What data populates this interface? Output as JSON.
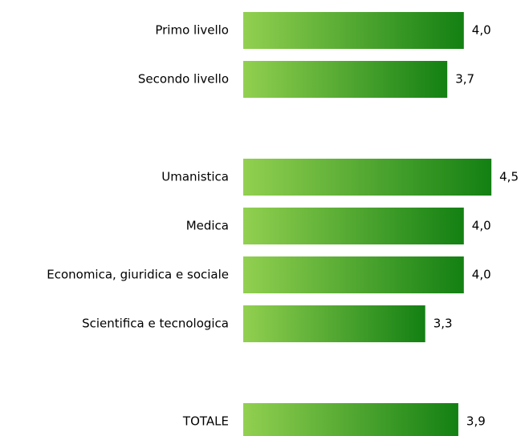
{
  "chart_data": {
    "type": "bar",
    "orientation": "horizontal",
    "categories": [
      "Primo livello",
      "Secondo livello",
      null,
      "Umanistica",
      "Medica",
      "Economica, giuridica e sociale",
      "Scientifica e tecnologica",
      null,
      "TOTALE"
    ],
    "values": [
      4.0,
      3.7,
      null,
      4.5,
      4.0,
      4.0,
      3.3,
      null,
      3.9
    ],
    "value_labels": [
      "4,0",
      "3,7",
      null,
      "4,5",
      "4,0",
      "4,0",
      "3,3",
      null,
      "3,9"
    ],
    "color": [
      "#92d050",
      "#138013"
    ]
  }
}
